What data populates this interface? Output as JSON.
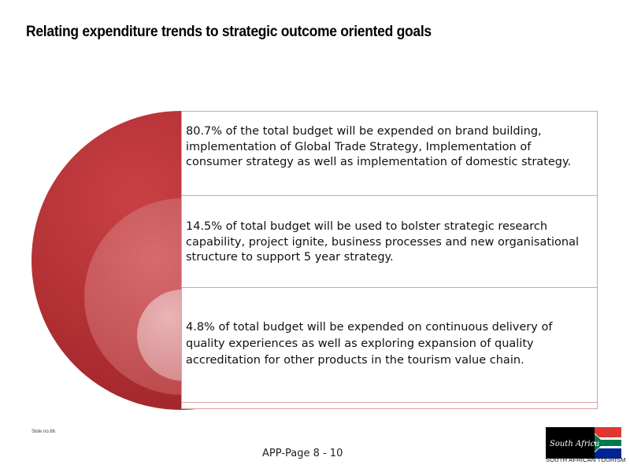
{
  "slide": {
    "title": "Relating expenditure trends to strategic outcome oriented goals",
    "slide_number_label": "Slide no.66",
    "page_label": "APP-Page 8 - 10"
  },
  "items": [
    {
      "text": "80.7% of the total budget will be expended on brand building, implementation  of Global Trade Strategy,  Implementation of consumer strategy as well as implementation of domestic strategy."
    },
    {
      "text": "14.5% of total budget will be used to bolster strategic research capability, project ignite, business processes and new organisational structure to support 5 year strategy."
    },
    {
      "text": "4.8% of total budget will be expended on continuous delivery of quality experiences as well as exploring expansion of quality accreditation for other products in the tourism value chain."
    }
  ],
  "logo": {
    "wordmark": "South Africa",
    "caption": "SOUTH AFRICAN TOURISM"
  },
  "colors": {
    "outer_circle": "#b93236",
    "middle_circle": "#cf5c5f",
    "inner_circle": "#e3a4a6",
    "box_border": "#d9a3a3"
  }
}
